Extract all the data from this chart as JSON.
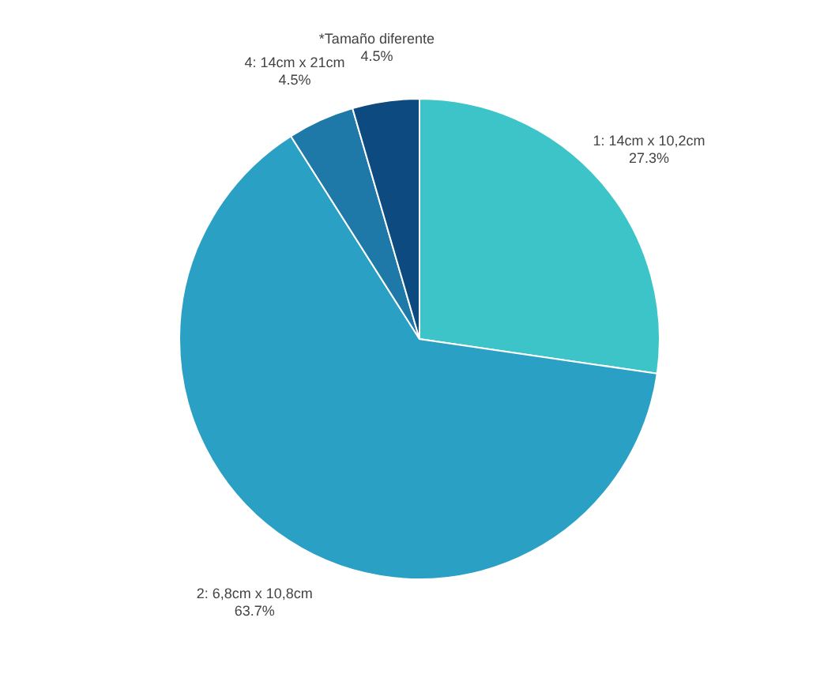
{
  "chart_data": {
    "type": "pie",
    "categories": [
      "1: 14cm x 10,2cm",
      "2: 6,8cm x 10,8cm",
      "4: 14cm x 21cm",
      "*Tamaño diferente"
    ],
    "values": [
      27.3,
      63.7,
      4.5,
      4.5
    ],
    "value_labels": [
      "27.3%",
      "63.7%",
      "4.5%",
      "4.5%"
    ],
    "colors": [
      "#3cc4c8",
      "#2aa0c4",
      "#1e78a8",
      "#0d4a80"
    ]
  }
}
